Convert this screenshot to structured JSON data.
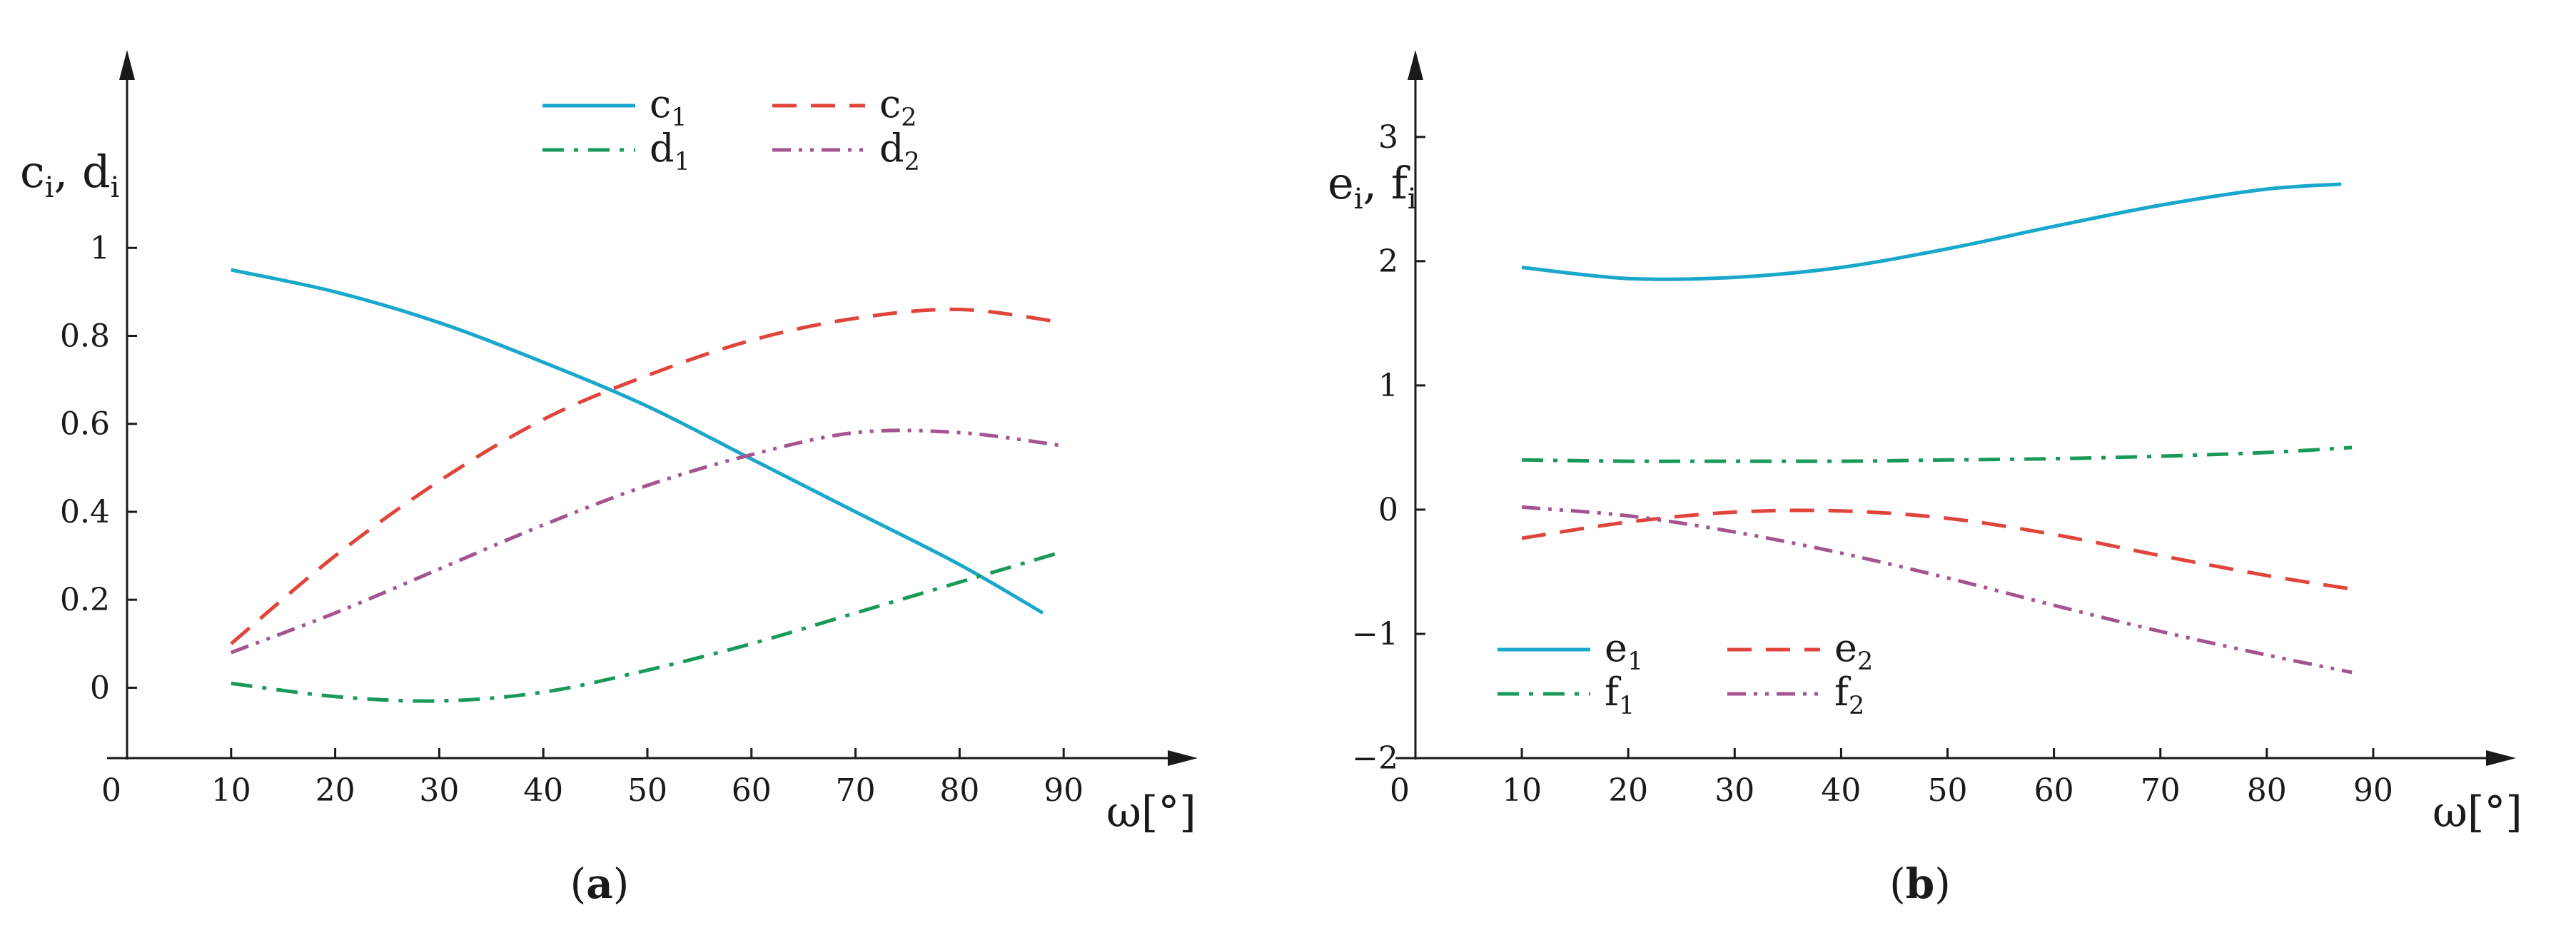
{
  "chart_data": [
    {
      "type": "line",
      "panel_label": "a",
      "ylabel_main": "c",
      "ylabel_sub": "i",
      "ylabel_main2": "d",
      "ylabel_sub2": "i",
      "xlabel": "ω[°]",
      "xlim": [
        0,
        100
      ],
      "ylim": [
        -0.16,
        1.45
      ],
      "xticks": [
        10,
        20,
        30,
        40,
        50,
        60,
        70,
        80,
        90
      ],
      "yticks": [
        0,
        0.2,
        0.4,
        0.6,
        0.8,
        1
      ],
      "ytick_labels": [
        "0",
        "0.2",
        "0.4",
        "0.6",
        "0.8",
        "1"
      ],
      "origin_label": "0",
      "legend_position": "top-center",
      "series": [
        {
          "name": "c",
          "sub": "1",
          "color": "#1aa7cc",
          "dash": "solid",
          "x": [
            10,
            20,
            30,
            40,
            50,
            60,
            70,
            80,
            88
          ],
          "y": [
            0.95,
            0.9,
            0.83,
            0.74,
            0.64,
            0.52,
            0.4,
            0.28,
            0.17
          ]
        },
        {
          "name": "c",
          "sub": "2",
          "color": "#e0453b",
          "dash": "dashed",
          "x": [
            10,
            20,
            30,
            40,
            50,
            60,
            70,
            80,
            90
          ],
          "y": [
            0.1,
            0.3,
            0.47,
            0.61,
            0.71,
            0.79,
            0.84,
            0.86,
            0.83
          ]
        },
        {
          "name": "d",
          "sub": "1",
          "color": "#1a9a5a",
          "dash": "dashdot",
          "x": [
            10,
            20,
            30,
            40,
            50,
            60,
            70,
            80,
            90
          ],
          "y": [
            0.01,
            -0.02,
            -0.03,
            -0.01,
            0.04,
            0.1,
            0.17,
            0.24,
            0.31
          ]
        },
        {
          "name": "d",
          "sub": "2",
          "color": "#a4548f",
          "dash": "dashdotdot",
          "x": [
            10,
            20,
            30,
            40,
            50,
            60,
            70,
            80,
            90
          ],
          "y": [
            0.08,
            0.17,
            0.27,
            0.37,
            0.46,
            0.53,
            0.58,
            0.58,
            0.55
          ]
        }
      ]
    },
    {
      "type": "line",
      "panel_label": "b",
      "ylabel_main": "e",
      "ylabel_sub": "i",
      "ylabel_main2": "f",
      "ylabel_sub2": "i",
      "xlabel": "ω[°]",
      "xlim": [
        0,
        100
      ],
      "ylim": [
        -2.0,
        3.7
      ],
      "xticks": [
        10,
        20,
        30,
        40,
        50,
        60,
        70,
        80,
        90
      ],
      "yticks": [
        -2,
        -1,
        0,
        1,
        2,
        3
      ],
      "ytick_labels": [
        "−2",
        "−1",
        "0",
        "1",
        "2",
        "3"
      ],
      "origin_label": "0",
      "legend_position": "bottom-left",
      "series": [
        {
          "name": "e",
          "sub": "1",
          "color": "#1aa7cc",
          "dash": "solid",
          "x": [
            10,
            20,
            30,
            40,
            50,
            60,
            70,
            80,
            87
          ],
          "y": [
            1.95,
            1.86,
            1.87,
            1.95,
            2.1,
            2.28,
            2.45,
            2.58,
            2.62
          ]
        },
        {
          "name": "e",
          "sub": "2",
          "color": "#e0453b",
          "dash": "dashed",
          "x": [
            10,
            20,
            30,
            40,
            50,
            60,
            70,
            80,
            88
          ],
          "y": [
            -0.23,
            -0.1,
            -0.02,
            -0.01,
            -0.07,
            -0.2,
            -0.37,
            -0.53,
            -0.64
          ]
        },
        {
          "name": "f",
          "sub": "1",
          "color": "#1a9a5a",
          "dash": "dashdot",
          "x": [
            10,
            20,
            30,
            40,
            50,
            60,
            70,
            80,
            88
          ],
          "y": [
            0.4,
            0.39,
            0.39,
            0.39,
            0.4,
            0.41,
            0.43,
            0.46,
            0.5
          ]
        },
        {
          "name": "f",
          "sub": "2",
          "color": "#a4548f",
          "dash": "dashdotdot",
          "x": [
            10,
            20,
            30,
            40,
            50,
            60,
            70,
            80,
            88
          ],
          "y": [
            0.02,
            -0.05,
            -0.18,
            -0.35,
            -0.55,
            -0.77,
            -0.98,
            -1.17,
            -1.31
          ]
        }
      ]
    }
  ]
}
